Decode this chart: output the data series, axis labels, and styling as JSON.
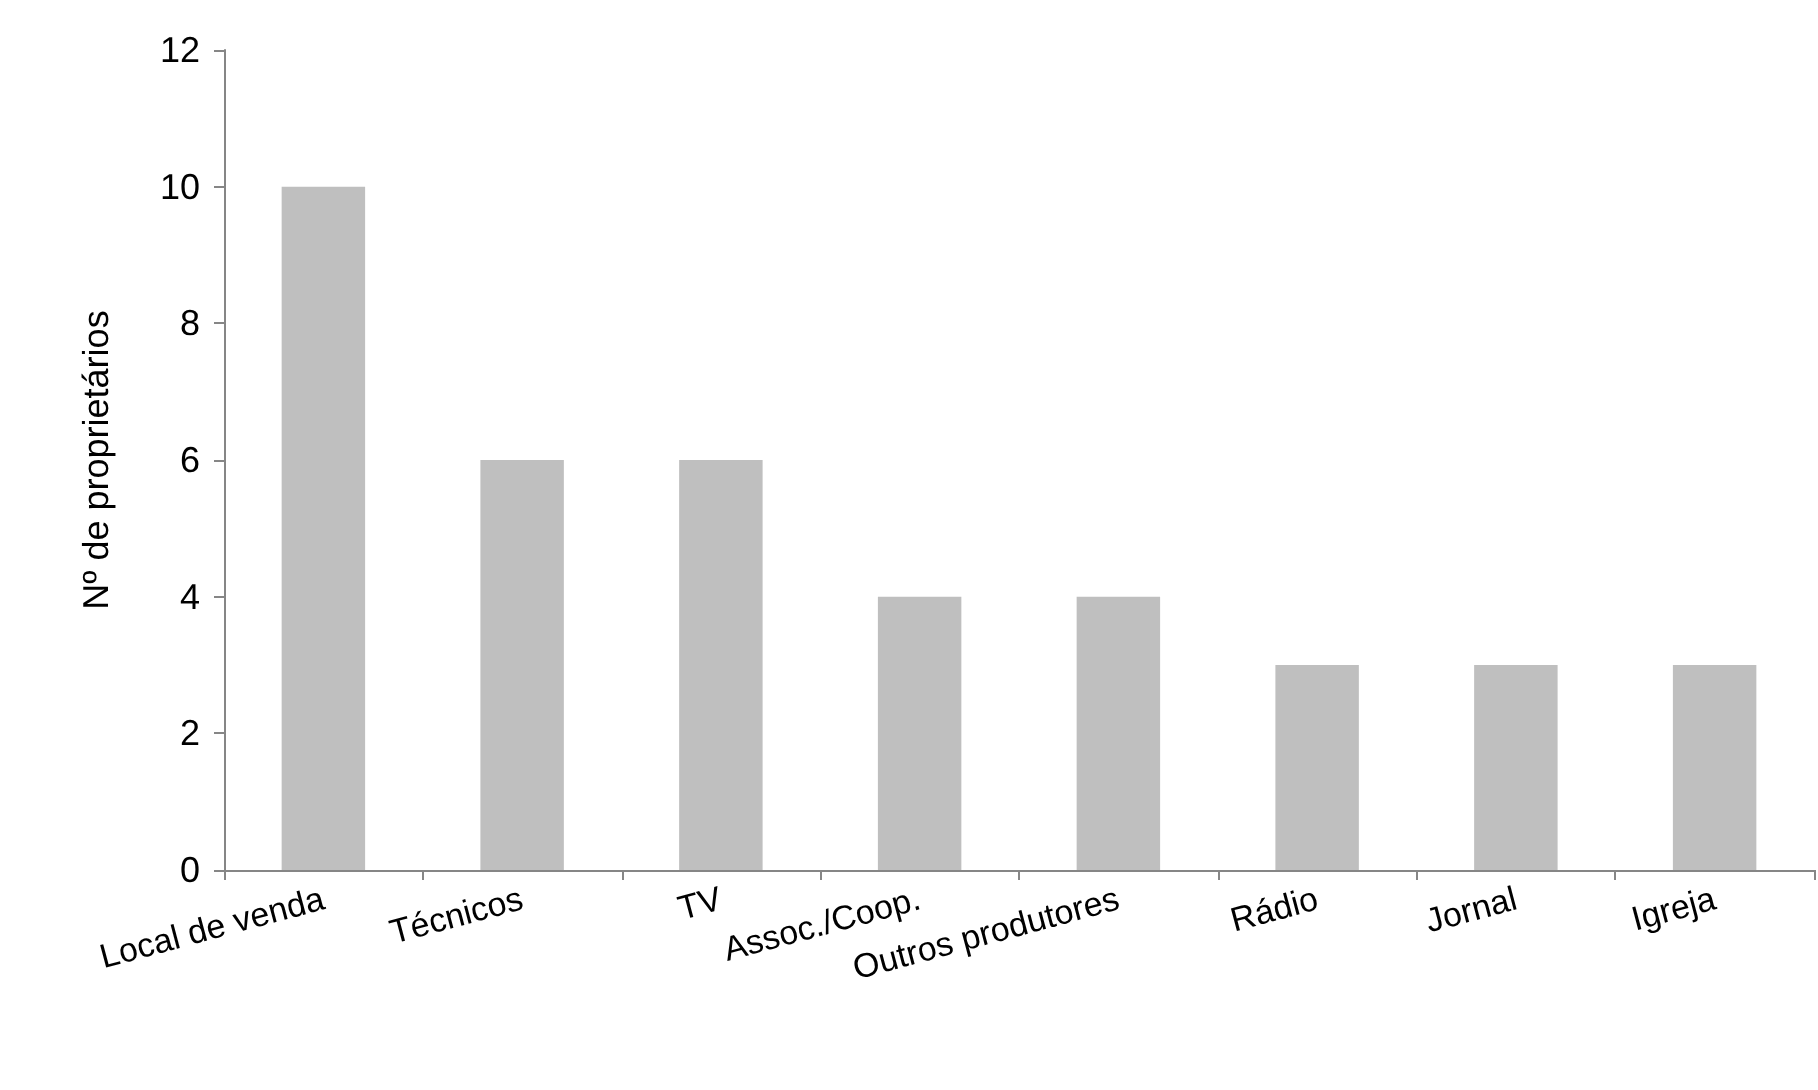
{
  "chart_data": {
    "type": "bar",
    "ylabel": "Nº de proprietários",
    "categories": [
      "Local de venda",
      "Técnicos",
      "TV",
      "Assoc./Coop.",
      "Outros produtores",
      "Rádio",
      "Jornal",
      "Igreja"
    ],
    "values": [
      10,
      6,
      6,
      4,
      4,
      3,
      3,
      3
    ],
    "color": "#bfbfbf",
    "ylim": [
      0,
      12
    ],
    "yticks": [
      0,
      2,
      4,
      6,
      8,
      10,
      12
    ],
    "grid": false
  }
}
